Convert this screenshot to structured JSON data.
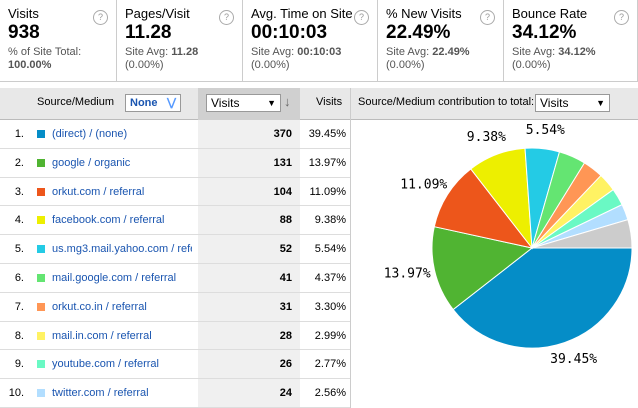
{
  "metrics": [
    {
      "label": "Visits",
      "value": "938",
      "note": "% of Site Total:",
      "note_value": "100.00%"
    },
    {
      "label": "Pages/Visit",
      "value": "11.28",
      "note": "Site Avg:",
      "note_value": "11.28",
      "change": "(0.00%)"
    },
    {
      "label": "Avg. Time on Site",
      "value": "00:10:03",
      "note": "Site Avg:",
      "note_value": "00:10:03",
      "change": "(0.00%)"
    },
    {
      "label": "% New Visits",
      "value": "22.49%",
      "note": "Site Avg:",
      "note_value": "22.49%",
      "change": "(0.00%)"
    },
    {
      "label": "Bounce Rate",
      "value": "34.12%",
      "note": "Site Avg:",
      "note_value": "34.12%",
      "change": "(0.00%)"
    }
  ],
  "table": {
    "headers": {
      "dimension": "Source/Medium",
      "secondary": "None",
      "sort": "Visits",
      "metric": "Visits",
      "pie_label": "Source/Medium contribution to total:",
      "pie_metric": "Visits"
    },
    "rows": [
      [
        "1.",
        "(direct) / (none)",
        "370",
        "39.45%"
      ],
      [
        "2.",
        "google / organic",
        "131",
        "13.97%"
      ],
      [
        "3.",
        "orkut.com / referral",
        "104",
        "11.09%"
      ],
      [
        "4.",
        "facebook.com / referral",
        "88",
        "9.38%"
      ],
      [
        "5.",
        "us.mg3.mail.yahoo.com / refe",
        "52",
        "5.54%"
      ],
      [
        "6.",
        "mail.google.com / referral",
        "41",
        "4.37%"
      ],
      [
        "7.",
        "orkut.co.in / referral",
        "31",
        "3.30%"
      ],
      [
        "8.",
        "mail.in.com / referral",
        "28",
        "2.99%"
      ],
      [
        "9.",
        "youtube.com / referral",
        "26",
        "2.77%"
      ],
      [
        "10.",
        "twitter.com / referral",
        "24",
        "2.56%"
      ]
    ]
  },
  "chart_data": {
    "type": "pie",
    "values": [
      39.45,
      13.97,
      11.09,
      9.38,
      5.54,
      4.37,
      3.3,
      2.99,
      2.77,
      2.56,
      4.58
    ],
    "value_labels": [
      "39.45%",
      "13.97%",
      "11.09%",
      "9.38%",
      "5.54%",
      null,
      null,
      null,
      null,
      null,
      null
    ],
    "colors": [
      "#058dc7",
      "#50b432",
      "#ed561b",
      "#edef00",
      "#24cbe5",
      "#64e572",
      "#ff9655",
      "#fff263",
      "#6af9c4",
      "#b2deff",
      "#cccccc"
    ]
  }
}
